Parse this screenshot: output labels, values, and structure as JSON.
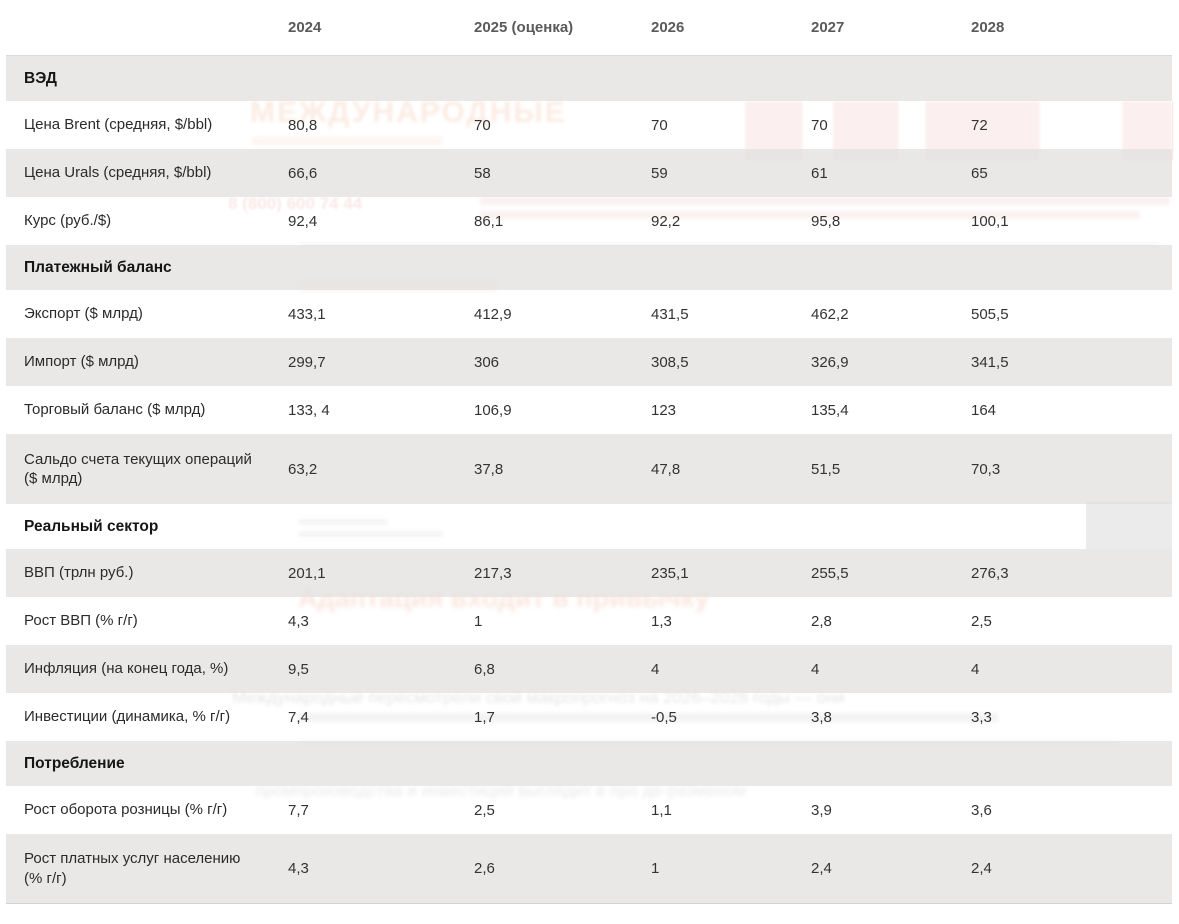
{
  "chart_data": {
    "type": "table",
    "title": "",
    "columns": [
      "",
      "2024",
      "2025 (оценка)",
      "2026",
      "2027",
      "2028"
    ],
    "rows": [
      {
        "type": "section",
        "label": "ВЭД",
        "values": []
      },
      {
        "type": "data",
        "label": "Цена Brent (средняя, $/bbl)",
        "values": [
          "80,8",
          "70",
          "70",
          "70",
          "72"
        ]
      },
      {
        "type": "data",
        "label": "Цена Urals (средняя, $/bbl)",
        "values": [
          "66,6",
          "58",
          "59",
          "61",
          "65"
        ]
      },
      {
        "type": "data",
        "label": "Курс (руб./$)",
        "values": [
          "92,4",
          "86,1",
          "92,2",
          "95,8",
          "100,1"
        ]
      },
      {
        "type": "section",
        "label": "Платежный баланс",
        "values": []
      },
      {
        "type": "data",
        "label": "Экспорт ($ млрд)",
        "values": [
          "433,1",
          "412,9",
          "431,5",
          "462,2",
          "505,5"
        ]
      },
      {
        "type": "data",
        "label": "Импорт ($ млрд)",
        "values": [
          "299,7",
          "306",
          "308,5",
          "326,9",
          "341,5"
        ]
      },
      {
        "type": "data",
        "label": "Торговый баланс ($ млрд)",
        "values": [
          "133, 4",
          "106,9",
          "123",
          "135,4",
          "164"
        ]
      },
      {
        "type": "data",
        "label": "Сальдо счета текущих операций ($ млрд)",
        "values": [
          "63,2",
          "37,8",
          "47,8",
          "51,5",
          "70,3"
        ]
      },
      {
        "type": "section",
        "label": "Реальный сектор",
        "values": []
      },
      {
        "type": "data",
        "label": "ВВП (трлн руб.)",
        "values": [
          "201,1",
          "217,3",
          "235,1",
          "255,5",
          "276,3"
        ]
      },
      {
        "type": "data",
        "label": "Рост ВВП (% г/г)",
        "values": [
          "4,3",
          "1",
          "1,3",
          "2,8",
          "2,5"
        ]
      },
      {
        "type": "data",
        "label": "Инфляция (на конец года, %)",
        "values": [
          "9,5",
          "6,8",
          "4",
          "4",
          "4"
        ]
      },
      {
        "type": "data",
        "label": "Инвестиции (динамика, % г/г)",
        "values": [
          "7,4",
          "1,7",
          "-0,5",
          "3,8",
          "3,3"
        ]
      },
      {
        "type": "section",
        "label": "Потребление",
        "values": []
      },
      {
        "type": "data",
        "label": "Рост оборота розницы (% г/г)",
        "values": [
          "7,7",
          "2,5",
          "1,1",
          "3,9",
          "3,6"
        ]
      },
      {
        "type": "data",
        "label": "Рост платных услуг населению (% г/г)",
        "values": [
          "4,3",
          "2,6",
          "1",
          "2,4",
          "2,4"
        ]
      }
    ],
    "layout": {
      "striped": true,
      "grid": false,
      "legend": "none"
    }
  },
  "watermarks": {
    "brand": "МЕЖДУНАРОДНЫЕ",
    "phone": "8 (800) 600 74 44",
    "headline": "Адаптация входит в привычку",
    "paragraph": "Международные пересмотрели свой макропрогноз на 2026–2028 годы — они",
    "fragment": "промпроизводства и инвестиций выглядит в про де-разменом"
  },
  "colors": {
    "row_gray": "#ebebeb",
    "row_white": "#fdfdfd",
    "text_dark": "#2b2b2b",
    "header_gray": "#5a5a5a",
    "accent_orange": "#e8824f",
    "banner_pink": "#d97a6e"
  }
}
